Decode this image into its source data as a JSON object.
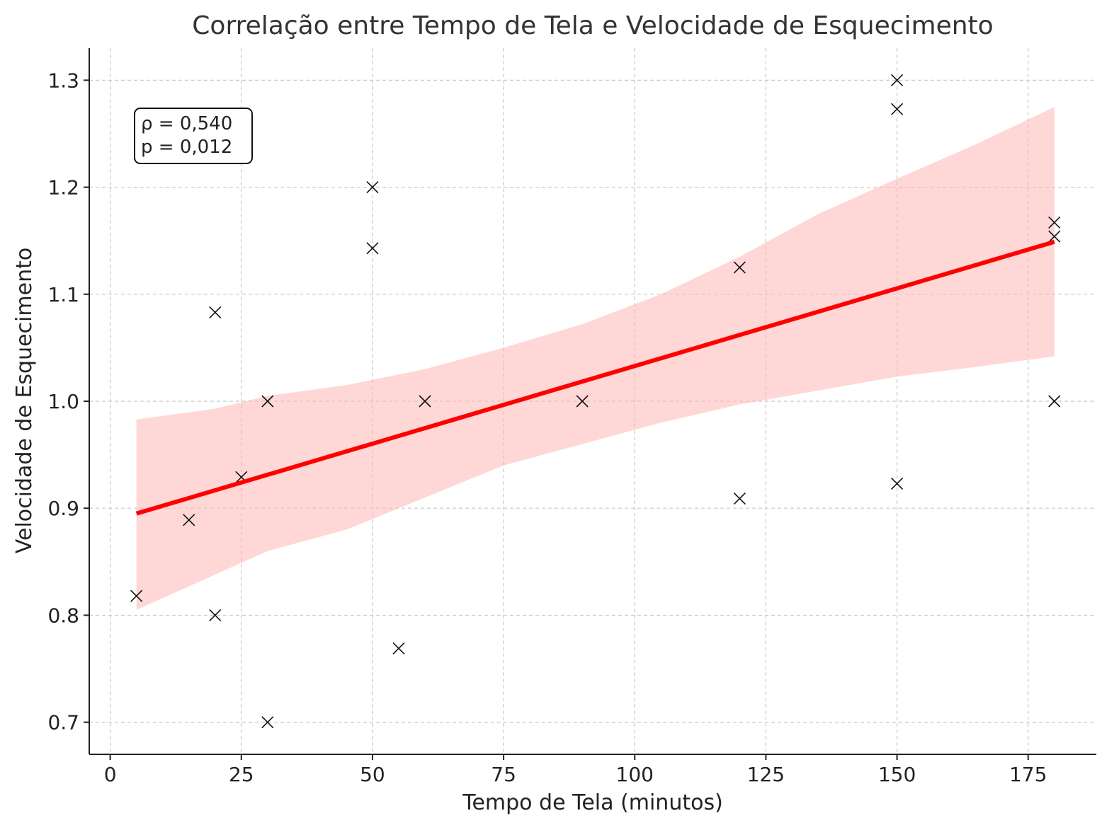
{
  "chart_data": {
    "type": "scatter",
    "title": "Correlação entre Tempo de Tela e Velocidade de Esquecimento",
    "xlabel": "Tempo de Tela (minutos)",
    "ylabel": "Velocidade de Esquecimento",
    "xlim": [
      -4,
      188
    ],
    "ylim": [
      0.67,
      1.33
    ],
    "x_ticks": [
      0,
      25,
      50,
      75,
      100,
      125,
      150,
      175
    ],
    "x_tick_labels": [
      "0",
      "25",
      "50",
      "75",
      "100",
      "125",
      "150",
      "175"
    ],
    "y_ticks": [
      0.7,
      0.8,
      0.9,
      1.0,
      1.1,
      1.2,
      1.3
    ],
    "y_tick_labels": [
      "0.7",
      "0.8",
      "0.9",
      "1.0",
      "1.1",
      "1.2",
      "1.3"
    ],
    "grid": true,
    "points": [
      {
        "x": 5,
        "y": 0.818
      },
      {
        "x": 15,
        "y": 0.889
      },
      {
        "x": 20,
        "y": 1.083
      },
      {
        "x": 20,
        "y": 0.8
      },
      {
        "x": 25,
        "y": 0.929
      },
      {
        "x": 30,
        "y": 1.0
      },
      {
        "x": 30,
        "y": 0.7
      },
      {
        "x": 50,
        "y": 1.2
      },
      {
        "x": 50,
        "y": 1.143
      },
      {
        "x": 55,
        "y": 0.769
      },
      {
        "x": 60,
        "y": 1.0
      },
      {
        "x": 90,
        "y": 1.0
      },
      {
        "x": 120,
        "y": 1.125
      },
      {
        "x": 120,
        "y": 0.909
      },
      {
        "x": 150,
        "y": 1.3
      },
      {
        "x": 150,
        "y": 1.273
      },
      {
        "x": 150,
        "y": 0.923
      },
      {
        "x": 180,
        "y": 1.167
      },
      {
        "x": 180,
        "y": 1.154
      },
      {
        "x": 180,
        "y": 1.0
      }
    ],
    "regression_line": {
      "x": [
        5,
        180
      ],
      "y": [
        0.895,
        1.149
      ],
      "color": "#ff0000"
    },
    "confidence_band": {
      "color": "#ffb6b6",
      "x": [
        5,
        20,
        30,
        45,
        60,
        75,
        90,
        105,
        120,
        135,
        150,
        165,
        180
      ],
      "upper": [
        0.983,
        0.993,
        1.005,
        1.015,
        1.03,
        1.05,
        1.072,
        1.1,
        1.135,
        1.175,
        1.208,
        1.24,
        1.275
      ],
      "lower": [
        0.805,
        0.838,
        0.86,
        0.88,
        0.91,
        0.94,
        0.96,
        0.98,
        0.997,
        1.01,
        1.023,
        1.032,
        1.042
      ]
    },
    "annotation": {
      "line1": "ρ = 0,540",
      "line2": "p = 0,012"
    }
  }
}
